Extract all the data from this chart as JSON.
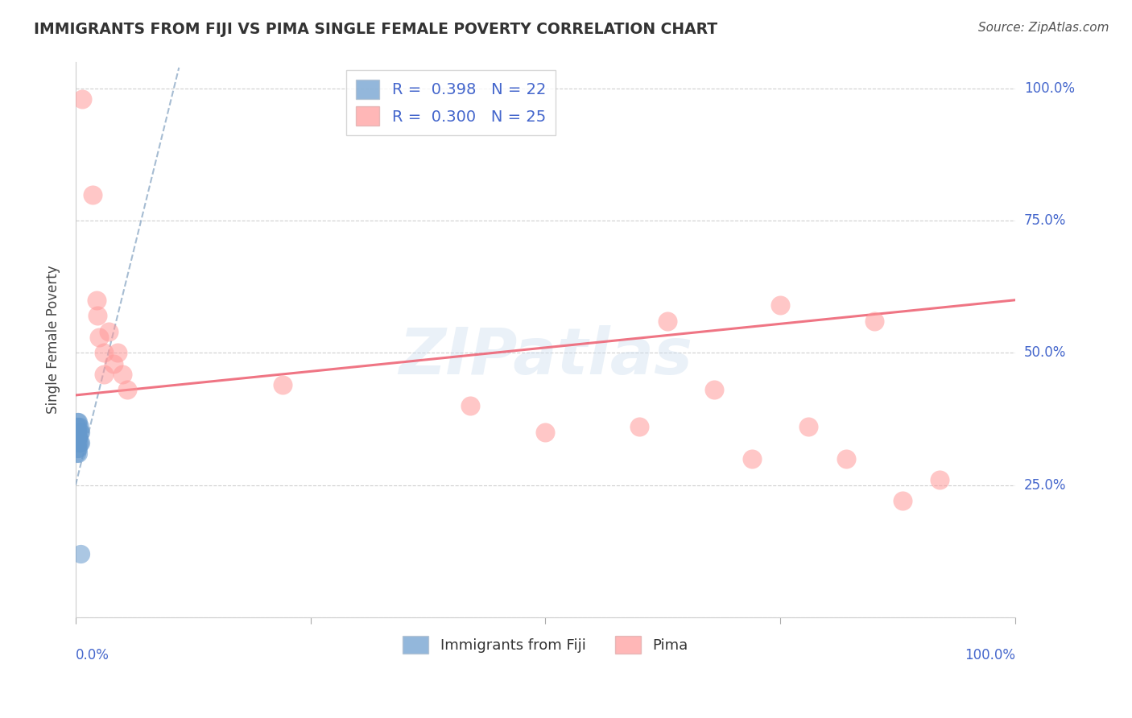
{
  "title": "IMMIGRANTS FROM FIJI VS PIMA SINGLE FEMALE POVERTY CORRELATION CHART",
  "source": "Source: ZipAtlas.com",
  "ylabel": "Single Female Poverty",
  "legend_label1": "Immigrants from Fiji",
  "legend_label2": "Pima",
  "blue_color": "#6699CC",
  "pink_color": "#FF9999",
  "blue_line_color": "#7799BB",
  "pink_line_color": "#EE6677",
  "title_color": "#333333",
  "axis_label_color": "#4466CC",
  "watermark_text": "ZIPatlas",
  "fiji_x": [
    0.001,
    0.001,
    0.001,
    0.001,
    0.002,
    0.002,
    0.002,
    0.002,
    0.002,
    0.003,
    0.003,
    0.003,
    0.003,
    0.003,
    0.003,
    0.003,
    0.004,
    0.004,
    0.004,
    0.005,
    0.005,
    0.005
  ],
  "fiji_y": [
    0.36,
    0.34,
    0.33,
    0.31,
    0.37,
    0.35,
    0.34,
    0.33,
    0.32,
    0.37,
    0.36,
    0.35,
    0.34,
    0.33,
    0.32,
    0.31,
    0.36,
    0.35,
    0.33,
    0.35,
    0.33,
    0.12
  ],
  "pima_x": [
    0.007,
    0.018,
    0.022,
    0.023,
    0.025,
    0.03,
    0.03,
    0.035,
    0.04,
    0.045,
    0.05,
    0.055,
    0.22,
    0.42,
    0.5,
    0.6,
    0.63,
    0.68,
    0.72,
    0.75,
    0.78,
    0.82,
    0.85,
    0.88,
    0.92
  ],
  "pima_y": [
    0.98,
    0.8,
    0.6,
    0.57,
    0.53,
    0.5,
    0.46,
    0.54,
    0.48,
    0.5,
    0.46,
    0.43,
    0.44,
    0.4,
    0.35,
    0.36,
    0.56,
    0.43,
    0.3,
    0.59,
    0.36,
    0.3,
    0.56,
    0.22,
    0.26
  ],
  "fiji_trend_x": [
    0.0,
    0.11
  ],
  "fiji_trend_y": [
    0.25,
    1.04
  ],
  "pima_trend_x": [
    0.0,
    1.0
  ],
  "pima_trend_y": [
    0.42,
    0.6
  ],
  "xlim": [
    0.0,
    1.0
  ],
  "ylim": [
    0.0,
    1.05
  ],
  "y_ticks": [
    0.0,
    0.25,
    0.5,
    0.75,
    1.0
  ],
  "y_tick_labels": [
    "",
    "25.0%",
    "50.0%",
    "75.0%",
    "100.0%"
  ],
  "x_ticks": [
    0.0,
    0.25,
    0.5,
    0.75,
    1.0
  ],
  "x_tick_labels_left": "0.0%",
  "x_tick_labels_right": "100.0%"
}
